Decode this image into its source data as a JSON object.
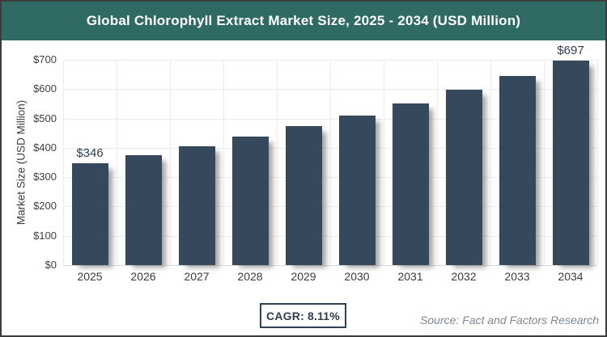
{
  "header": {
    "title": "Global Chlorophyll Extract Market Size, 2025 - 2034 (USD Million)"
  },
  "chart_data": {
    "type": "bar",
    "title": "Global Chlorophyll Extract Market Size, 2025 - 2034 (USD Million)",
    "categories": [
      "2025",
      "2026",
      "2027",
      "2028",
      "2029",
      "2030",
      "2031",
      "2032",
      "2033",
      "2034"
    ],
    "values": [
      346,
      374,
      404,
      437,
      473,
      511,
      552,
      597,
      645,
      697
    ],
    "data_labels": [
      {
        "index": 0,
        "text": "$346"
      },
      {
        "index": 9,
        "text": "$697"
      }
    ],
    "xlabel": "",
    "ylabel": "Market Size (USD Million)",
    "ylim": [
      0,
      700
    ],
    "ytick_step": 100,
    "ytick_labels": [
      "$0",
      "$100",
      "$200",
      "$300",
      "$400",
      "$500",
      "$600",
      "$700"
    ],
    "grid": true,
    "legend": "none",
    "bar_color": "#36495c",
    "header_color": "#2f6a65"
  },
  "footer": {
    "cagr_label": "CAGR: 8.11%",
    "source": "Source: Fact and Factors Research"
  }
}
